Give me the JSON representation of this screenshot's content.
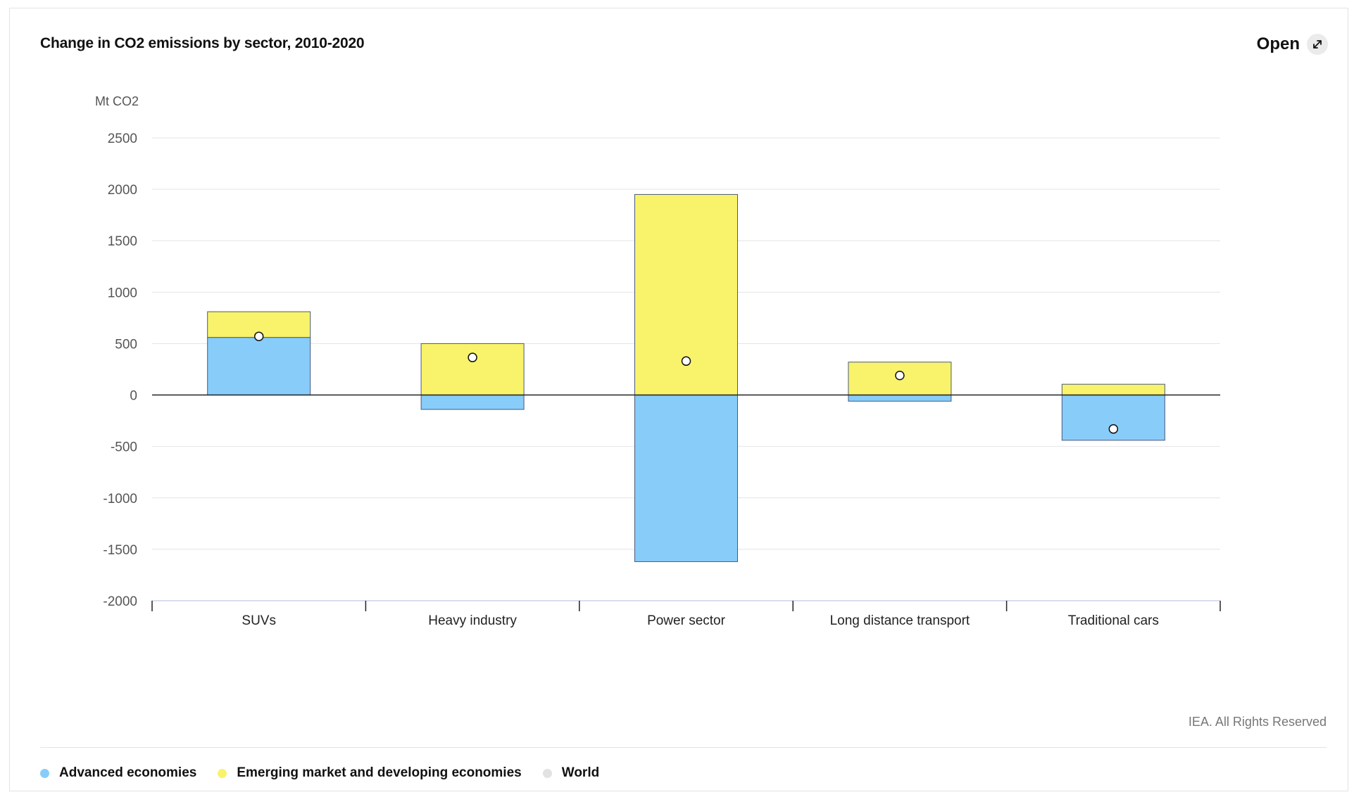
{
  "header": {
    "title": "Change in CO2 emissions by sector, 2010-2020",
    "open_label": "Open",
    "open_icon": "expand-arrows-icon"
  },
  "footer": {
    "copyright": "IEA. All Rights Reserved"
  },
  "chart_data": {
    "type": "bar",
    "stacked": true,
    "title": "Change in CO2 emissions by sector, 2010-2020",
    "ylabel": "Mt CO2",
    "xlabel": "",
    "ylim": [
      -2000,
      2500
    ],
    "yticks": [
      2500,
      2000,
      1500,
      1000,
      500,
      0,
      -500,
      -1000,
      -1500,
      -2000
    ],
    "grid": true,
    "legend_position": "bottom-left",
    "categories": [
      "SUVs",
      "Heavy industry",
      "Power sector",
      "Long distance transport",
      "Traditional cars"
    ],
    "series": [
      {
        "name": "Advanced economies",
        "type": "bar",
        "color": "#88ccfa",
        "values": [
          560,
          -140,
          -1620,
          -60,
          -440
        ]
      },
      {
        "name": "Emerging market and developing economies",
        "type": "bar",
        "color": "#f8f36a",
        "values": [
          250,
          500,
          1950,
          320,
          105
        ]
      },
      {
        "name": "World",
        "type": "point",
        "color": "#e2e2e2",
        "values": [
          570,
          365,
          330,
          190,
          -330
        ]
      }
    ]
  }
}
